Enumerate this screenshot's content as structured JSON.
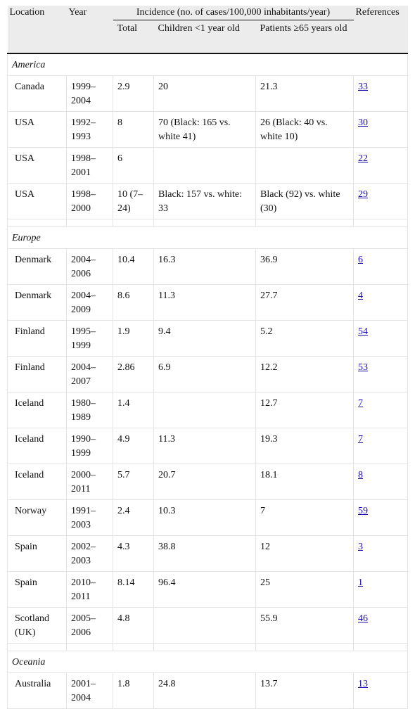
{
  "table": {
    "header": {
      "location": "Location",
      "year": "Year",
      "incidence": "Incidence (no. of cases/100,000 inhabitants/year)",
      "references": "References",
      "sub": [
        "Total",
        "Children <1 year old",
        "Patients ≥65 years old"
      ]
    },
    "groups": [
      {
        "name": "America",
        "rows": [
          [
            "Canada",
            "1999–2004",
            "2.9",
            "20",
            "21.3",
            "33"
          ],
          [
            "USA",
            "1992–1993",
            "8",
            "70 (Black: 165 vs. white 41)",
            "26 (Black: 40 vs. white 10)",
            "30"
          ],
          [
            "USA",
            "1998–2001",
            "6",
            null,
            null,
            "22"
          ],
          [
            "USA",
            "1998–2000",
            "10 (7–24)",
            "Black: 157 vs. white: 33",
            "Black (92) vs. white (30)",
            "29"
          ]
        ]
      },
      {
        "name": "Europe",
        "rows": [
          [
            "Denmark",
            "2004–2006",
            "10.4",
            "16.3",
            "36.9",
            "6"
          ],
          [
            "Denmark",
            "2004–2009",
            "8.6",
            "11.3",
            "27.7",
            "4"
          ],
          [
            "Finland",
            "1995–1999",
            "1.9",
            "9.4",
            "5.2",
            "54"
          ],
          [
            "Finland",
            "2004–2007",
            "2.86",
            "6.9",
            "12.2",
            "53"
          ],
          [
            "Iceland",
            "1980–1989",
            "1.4",
            null,
            "12.7",
            "7"
          ],
          [
            "Iceland",
            "1990–1999",
            "4.9",
            "11.3",
            "19.3",
            "7"
          ],
          [
            "Iceland",
            "2000–2011",
            "5.7",
            "20.7",
            "18.1",
            "8"
          ],
          [
            "Norway",
            "1991–2003",
            "2.4",
            "10.3",
            "7",
            "59"
          ],
          [
            "Spain",
            "2002–2003",
            "4.3",
            "38.8",
            "12",
            "3"
          ],
          [
            "Spain",
            "2010–2011",
            "8.14",
            "96.4",
            "25",
            "1"
          ],
          [
            "Scotland (UK)",
            "2005–2006",
            "4.8",
            null,
            "55.9",
            "46"
          ]
        ]
      },
      {
        "name": "Oceania",
        "rows": [
          [
            "Australia",
            "2001–2004",
            "1.8",
            "24.8",
            "13.7",
            "13"
          ]
        ]
      }
    ]
  }
}
